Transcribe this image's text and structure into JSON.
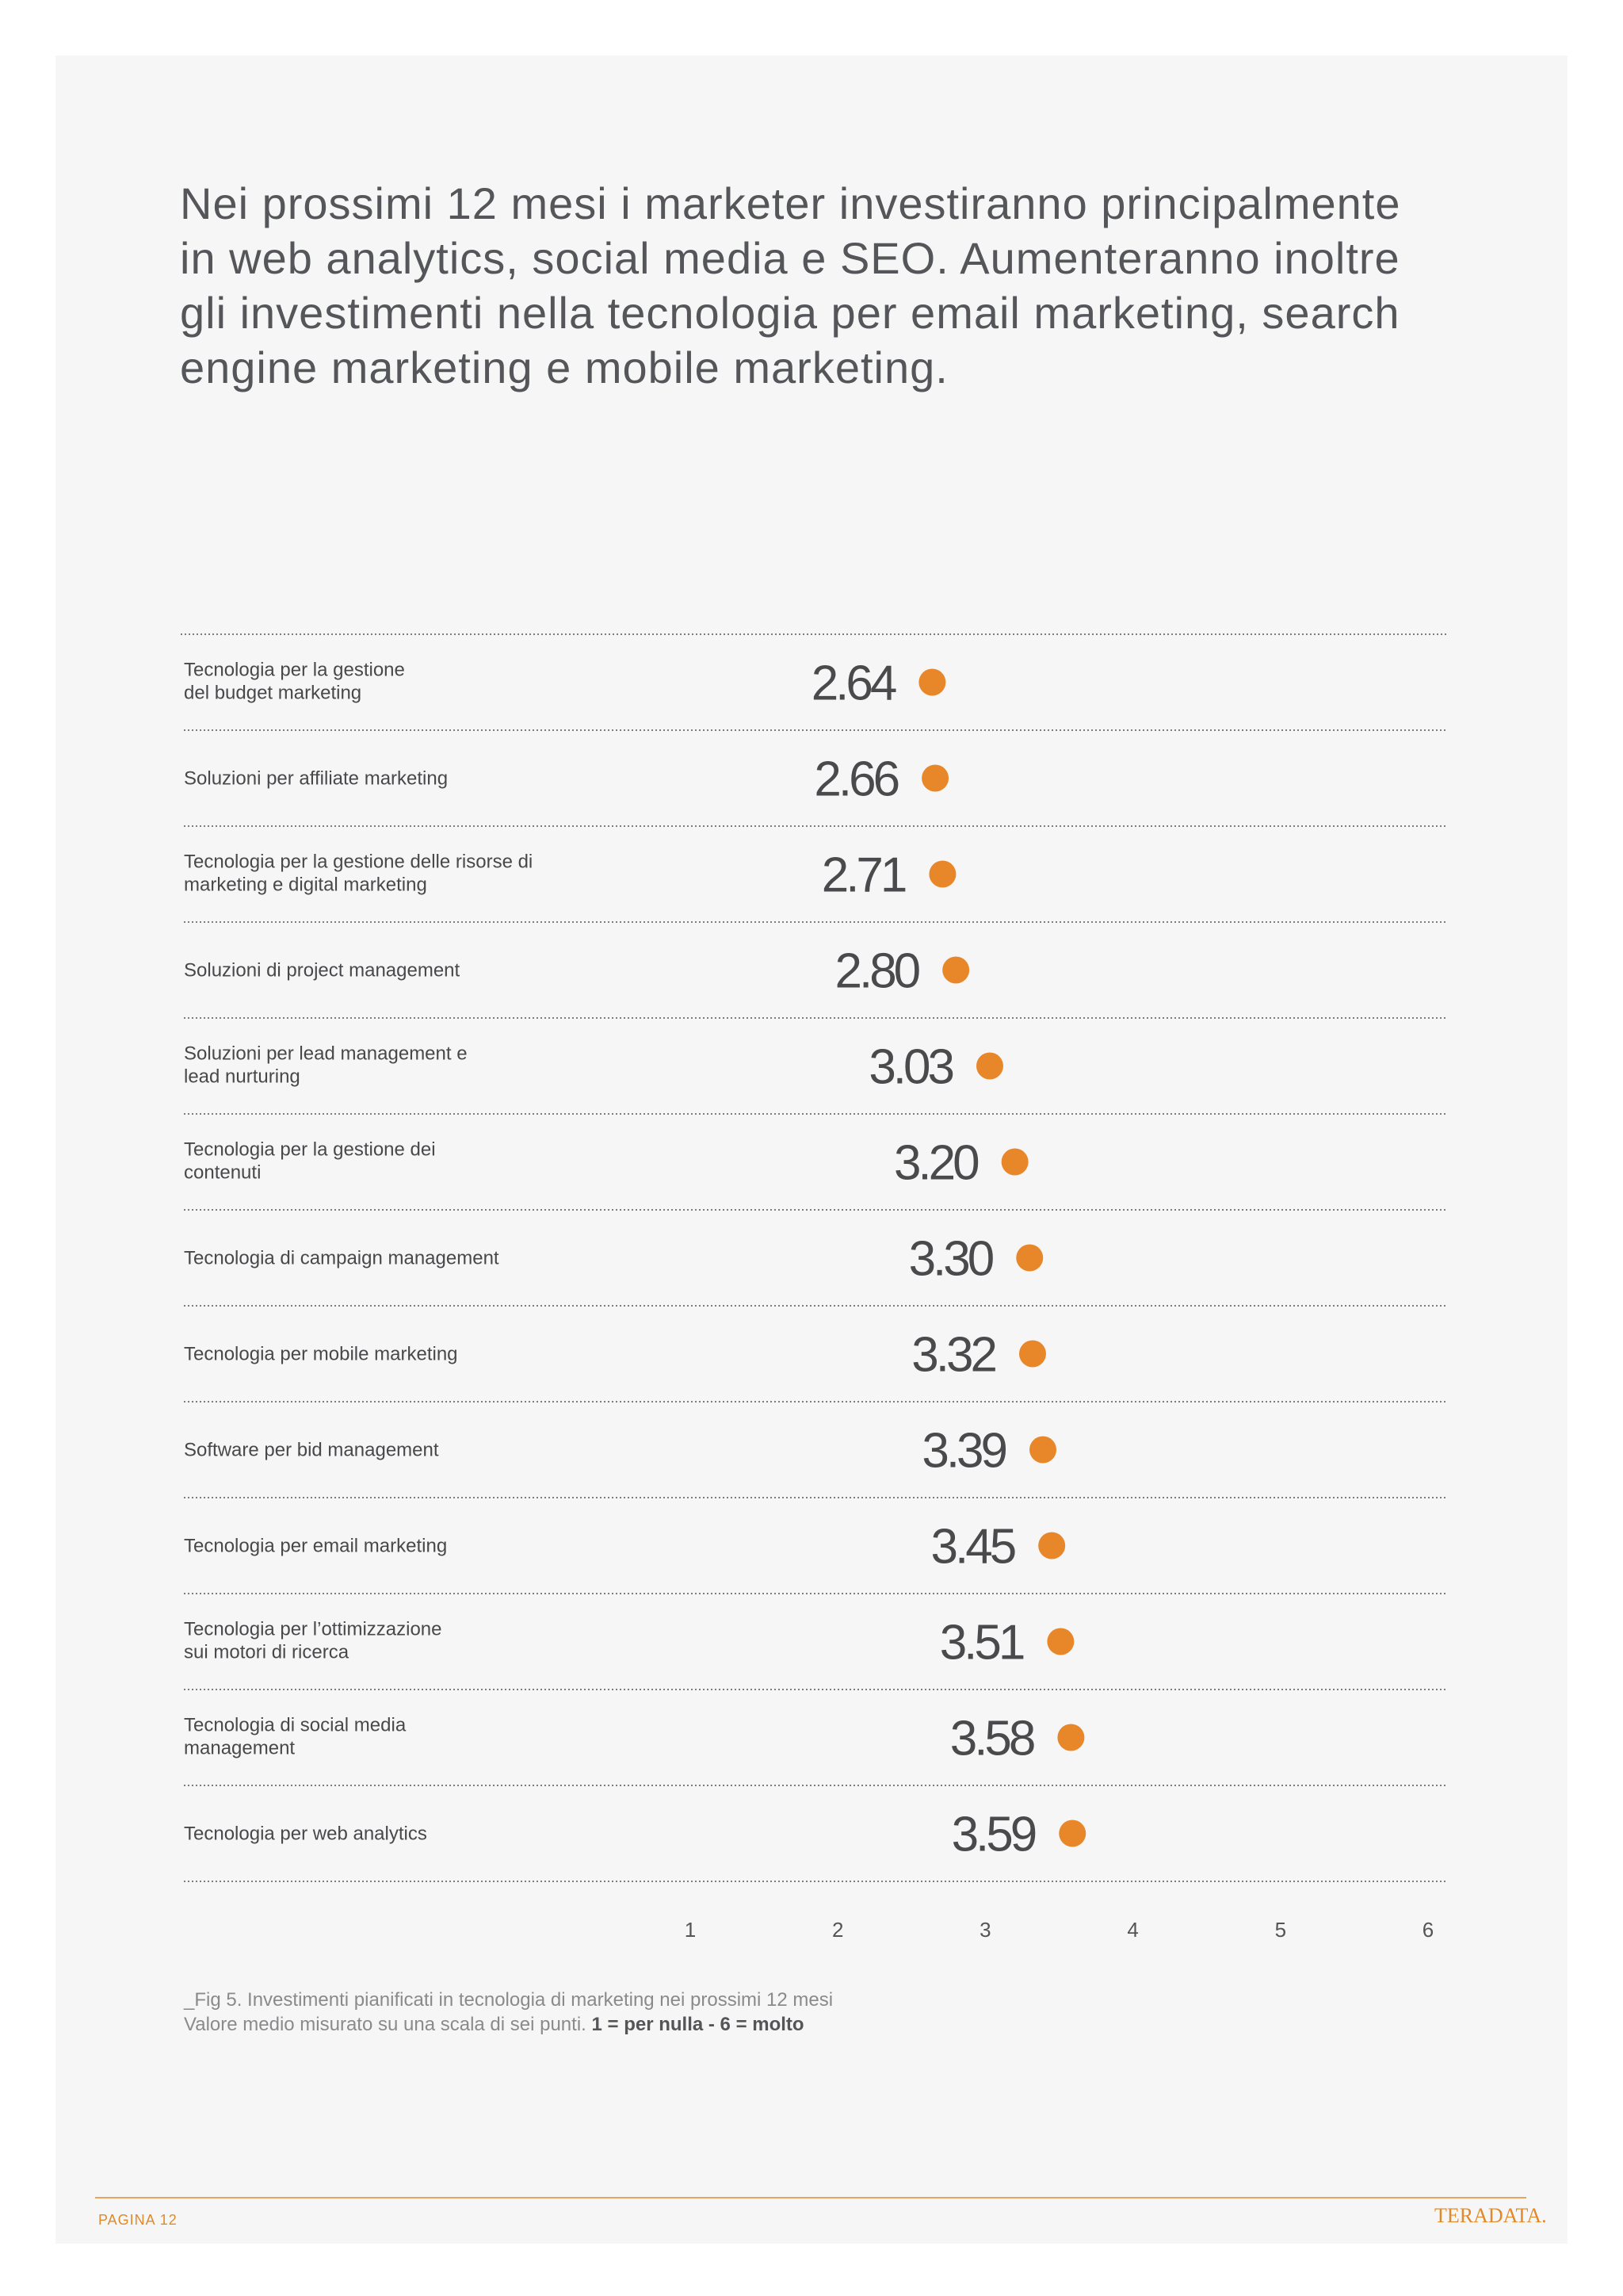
{
  "headline": "Nei prossimi 12 mesi i marketer investiranno principalmente in web analytics, social media e SEO. Aumenteranno inoltre gli investimenti nella tecnologia per email marketing, search engine marketing e mobile marketing.",
  "chart_data": {
    "type": "scatter",
    "orientation": "horizontal dot plot",
    "x_ticks": [
      "1",
      "2",
      "3",
      "4",
      "5",
      "6"
    ],
    "xlim": [
      1,
      6
    ],
    "marker_color": "#e8872a",
    "grid": "dotted row separators",
    "categories": [
      [
        "Tecnologia per la gestione",
        "del budget marketing"
      ],
      [
        "Soluzioni per affiliate marketing"
      ],
      [
        "Tecnologia per la gestione delle risorse di",
        "marketing e digital marketing"
      ],
      [
        "Soluzioni di project management"
      ],
      [
        "Soluzioni per lead management e",
        "lead nurturing"
      ],
      [
        "Tecnologia per la gestione dei",
        "contenuti"
      ],
      [
        "Tecnologia di campaign management"
      ],
      [
        "Tecnologia per mobile marketing"
      ],
      [
        "Software per bid management"
      ],
      [
        "Tecnologia per email marketing"
      ],
      [
        "Tecnologia per l’ottimizzazione",
        "sui motori di ricerca"
      ],
      [
        "Tecnologia di social media",
        "management"
      ],
      [
        "Tecnologia per web analytics"
      ]
    ],
    "values": [
      2.64,
      2.66,
      2.71,
      2.8,
      3.03,
      3.2,
      3.3,
      3.32,
      3.39,
      3.45,
      3.51,
      3.58,
      3.59
    ],
    "value_labels": [
      "2.64",
      "2.66",
      "2.71",
      "2.80",
      "3.03",
      "3.20",
      "3.30",
      "3.32",
      "3.39",
      "3.45",
      "3.51",
      "3.58",
      "3.59"
    ]
  },
  "caption": {
    "line1": "_Fig 5. Investimenti pianificati in tecnologia di marketing nei prossimi 12 mesi",
    "line2_prefix": "Valore medio misurato su una scala di sei punti. ",
    "line2_bold": "1 = per nulla - 6 = molto"
  },
  "footer": {
    "page": "PAGINA 12",
    "logo": "TERADATA."
  }
}
